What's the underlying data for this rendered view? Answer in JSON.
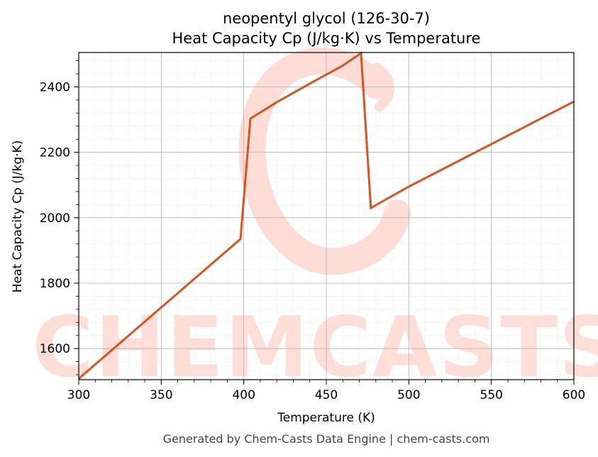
{
  "chart_data": {
    "type": "line",
    "title": "neopentyl glycol (126-30-7)",
    "subtitle": "Heat Capacity Cp (J/kg·K) vs Temperature",
    "xlabel": "Temperature (K)",
    "ylabel": "Heat Capacity Cp (J/kg·K)",
    "xlim": [
      300,
      600
    ],
    "ylim": [
      1505,
      2505
    ],
    "xticks": [
      300,
      350,
      400,
      450,
      500,
      550,
      600
    ],
    "xtick_labels": [
      "300",
      "350",
      "400",
      "450",
      "500",
      "550",
      "600"
    ],
    "yticks": [
      1600,
      1800,
      2000,
      2200,
      2400
    ],
    "ytick_labels": [
      "1600",
      "1800",
      "2000",
      "2200",
      "2400"
    ],
    "grid": true,
    "series": [
      {
        "color": "#d9531e",
        "x": [
          300,
          398,
          404,
          420,
          440,
          460,
          471,
          477,
          500,
          525,
          550,
          575,
          600
        ],
        "y": [
          1508,
          1935,
          2303,
          2353,
          2410,
          2465,
          2503,
          2030,
          2095,
          2160,
          2225,
          2290,
          2355
        ]
      }
    ]
  },
  "watermark": {
    "text": "CHEMCASTS",
    "color": "#ffd4cc"
  },
  "footer": "Generated by Chem-Casts Data Engine | chem-casts.com"
}
